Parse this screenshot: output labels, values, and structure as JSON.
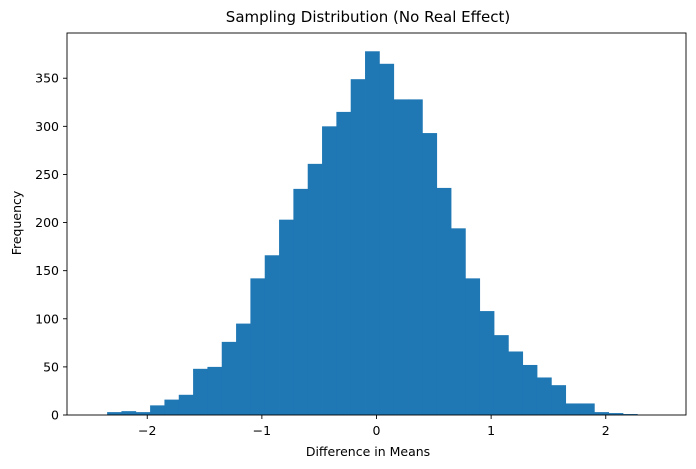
{
  "colors": {
    "bar": "#1f77b4",
    "axis": "#000000",
    "background": "#ffffff"
  },
  "chart_data": {
    "type": "histogram",
    "title": "Sampling Distribution (No Real Effect)",
    "xlabel": "Difference in Means",
    "ylabel": "Frequency",
    "xlim": [
      -2.7,
      2.7
    ],
    "ylim": [
      0,
      397
    ],
    "grid": false,
    "legend": "none",
    "xticks": [
      -2,
      -1,
      0,
      1,
      2
    ],
    "xtick_labels": [
      "−2",
      "−1",
      "0",
      "1",
      "2"
    ],
    "yticks": [
      0,
      50,
      100,
      150,
      200,
      250,
      300,
      350
    ],
    "ytick_labels": [
      "0",
      "50",
      "100",
      "150",
      "200",
      "250",
      "300",
      "350"
    ],
    "bin_edges": [
      -2.35,
      -2.225,
      -2.1,
      -1.975,
      -1.85,
      -1.725,
      -1.6,
      -1.475,
      -1.35,
      -1.225,
      -1.1,
      -0.975,
      -0.85,
      -0.725,
      -0.6,
      -0.475,
      -0.35,
      -0.225,
      -0.1,
      0.025,
      0.15,
      0.275,
      0.4,
      0.525,
      0.65,
      0.775,
      0.9,
      1.025,
      1.15,
      1.275,
      1.4,
      1.525,
      1.65,
      1.775,
      1.9,
      2.025,
      2.15,
      2.275,
      2.4
    ],
    "counts": [
      3,
      4,
      3,
      10,
      16,
      21,
      48,
      50,
      76,
      95,
      142,
      166,
      203,
      235,
      261,
      300,
      315,
      349,
      378,
      365,
      328,
      328,
      293,
      236,
      194,
      142,
      108,
      83,
      66,
      52,
      39,
      31,
      12,
      12,
      3,
      2,
      1,
      0
    ]
  }
}
